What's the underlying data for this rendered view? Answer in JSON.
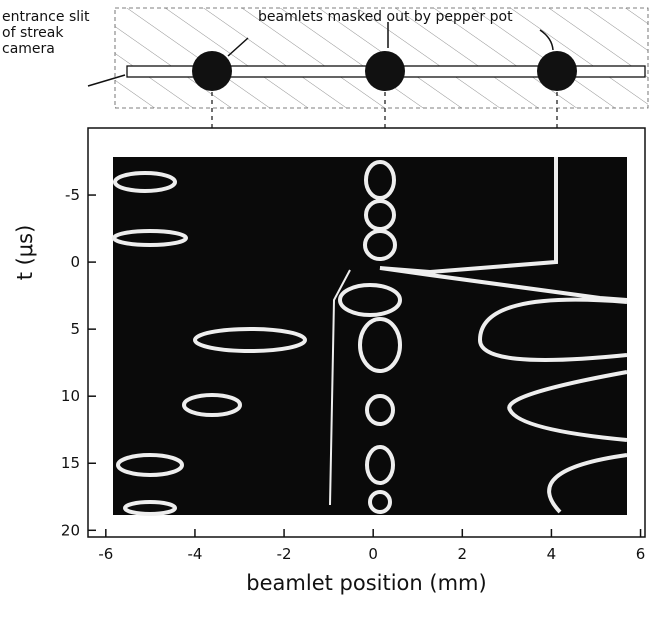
{
  "chart_data": {
    "type": "image",
    "annotations": {
      "slit": [
        "entrance slit",
        "of streak",
        "camera"
      ],
      "beamlets": "beamlets masked out by pepper pot"
    },
    "xlabel": "beamlet position (mm)",
    "ylabel": "t (μs)",
    "xlim": [
      -6.4,
      6.1
    ],
    "xticks": [
      -6,
      -4,
      -2,
      0,
      2,
      4,
      6
    ],
    "ylim": [
      20.5,
      -10
    ],
    "yticks": [
      -5,
      0,
      5,
      10,
      15,
      20
    ]
  }
}
